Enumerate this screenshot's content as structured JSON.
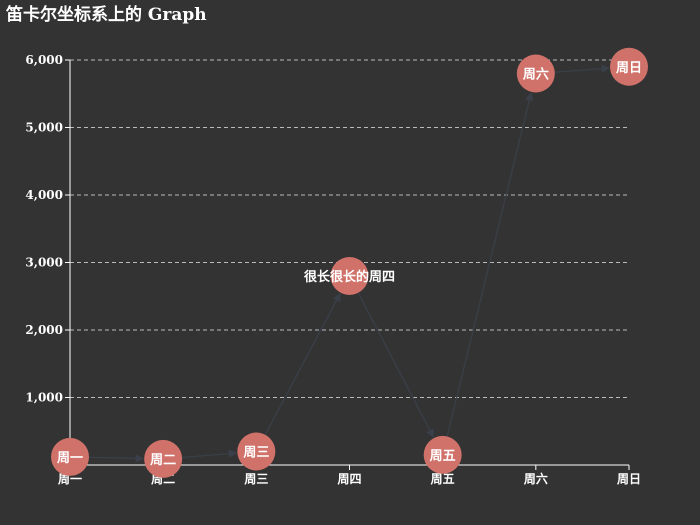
{
  "chart_data": {
    "type": "graph",
    "title": "笛卡尔坐标系上的 Graph",
    "categories": [
      "周一",
      "周二",
      "周三",
      "很长很长的周四",
      "周五",
      "周六",
      "周日"
    ],
    "x_tick_labels": [
      "周一",
      "周二",
      "周三",
      "周四",
      "周五",
      "周六",
      "周日"
    ],
    "values": [
      120,
      90,
      200,
      2800,
      150,
      5800,
      5900
    ],
    "ylim": [
      0,
      6000
    ],
    "yticks": [
      1000,
      2000,
      3000,
      4000,
      5000,
      6000
    ],
    "ytick_labels": [
      "1,000",
      "2,000",
      "3,000",
      "4,000",
      "5,000",
      "6,000"
    ],
    "grid": true,
    "colors": {
      "background": "#333333",
      "node": "#d0726a",
      "edge": "#3a404a",
      "text": "#ffffff"
    },
    "edges": [
      [
        0,
        1
      ],
      [
        1,
        2
      ],
      [
        2,
        3
      ],
      [
        3,
        4
      ],
      [
        4,
        5
      ],
      [
        5,
        6
      ]
    ]
  }
}
